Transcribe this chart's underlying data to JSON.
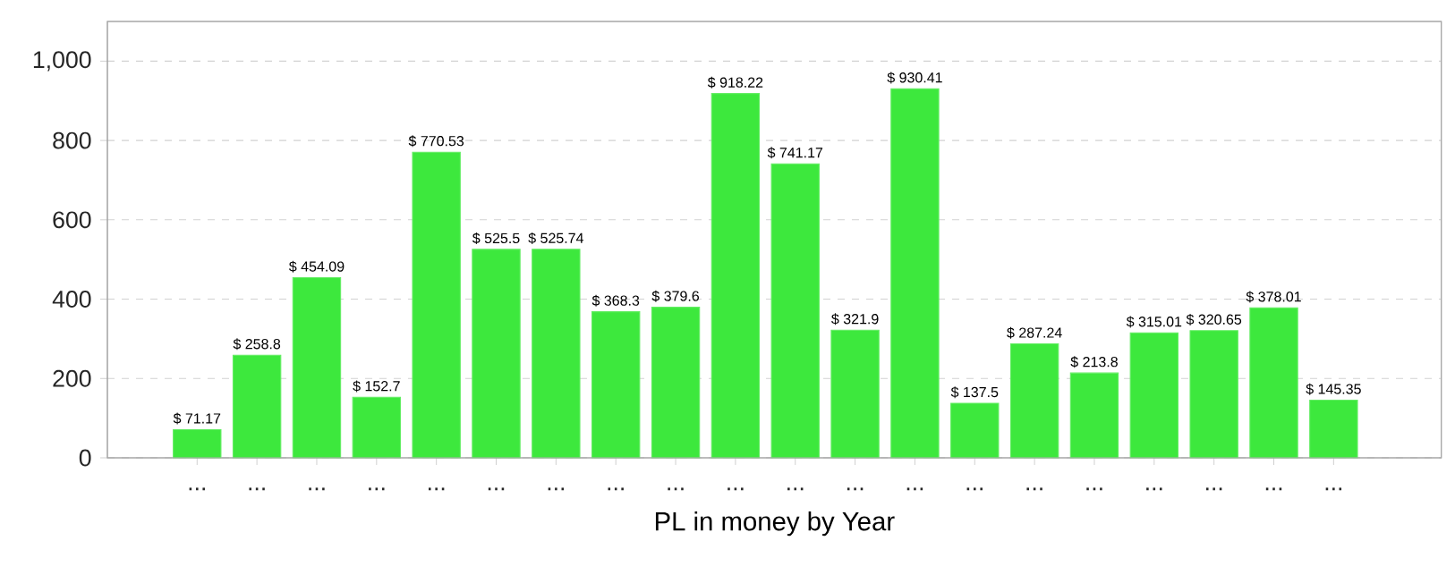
{
  "chart_data": {
    "type": "bar",
    "xlabel": "PL in money by Year",
    "categories": [
      "...",
      "...",
      "...",
      "...",
      "...",
      "...",
      "...",
      "...",
      "...",
      "...",
      "...",
      "...",
      "...",
      "...",
      "...",
      "...",
      "...",
      "...",
      "...",
      "..."
    ],
    "values": [
      71.17,
      258.8,
      454.09,
      152.7,
      770.53,
      525.5,
      525.74,
      368.3,
      379.6,
      918.22,
      741.17,
      321.9,
      930.41,
      137.5,
      287.24,
      213.8,
      315.01,
      320.65,
      378.01,
      145.35
    ],
    "value_labels": [
      "$ 71.17",
      "$ 258.8",
      "$ 454.09",
      "$ 152.7",
      "$ 770.53",
      "$ 525.5",
      "$ 525.74",
      "$ 368.3",
      "$ 379.6",
      "$ 918.22",
      "$ 741.17",
      "$ 321.9",
      "$ 930.41",
      "$ 137.5",
      "$ 287.24",
      "$ 213.8",
      "$ 315.01",
      "$ 320.65",
      "$ 378.01",
      "$ 145.35"
    ],
    "color": "#3de83d",
    "ylim": [
      0,
      1100
    ],
    "yticks": [
      0,
      200,
      400,
      600,
      800,
      {
        "value": 1000,
        "label": "1,000"
      }
    ],
    "grid": "y"
  }
}
